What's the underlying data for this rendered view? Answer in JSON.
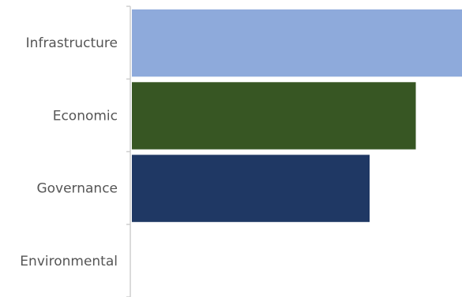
{
  "chart_data": {
    "type": "bar",
    "orientation": "horizontal",
    "categories": [
      "Infrastructure",
      "Economic",
      "Governance",
      "Environmental"
    ],
    "values": [
      1.0,
      0.86,
      0.72,
      0.0
    ],
    "colors": [
      "#8eaadb",
      "#375623",
      "#1f3864",
      "#ffffff"
    ],
    "xlim": [
      0,
      1.0
    ],
    "grid": false,
    "legend": "none",
    "title": "",
    "xlabel": "",
    "ylabel": ""
  }
}
